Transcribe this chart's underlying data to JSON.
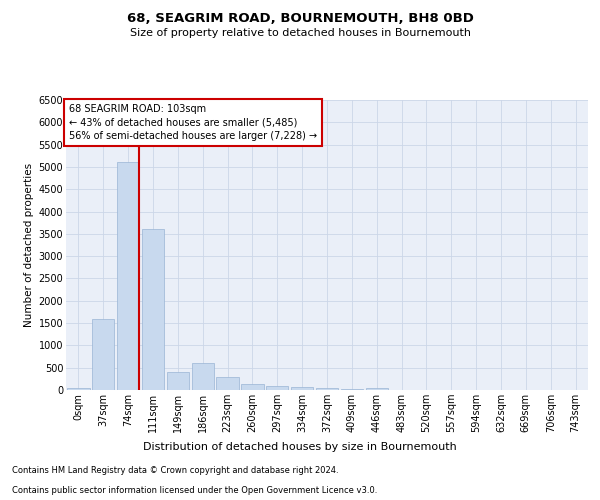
{
  "title": "68, SEAGRIM ROAD, BOURNEMOUTH, BH8 0BD",
  "subtitle": "Size of property relative to detached houses in Bournemouth",
  "xlabel": "Distribution of detached houses by size in Bournemouth",
  "ylabel": "Number of detached properties",
  "footer_line1": "Contains HM Land Registry data © Crown copyright and database right 2024.",
  "footer_line2": "Contains public sector information licensed under the Open Government Licence v3.0.",
  "bin_labels": [
    "0sqm",
    "37sqm",
    "74sqm",
    "111sqm",
    "149sqm",
    "186sqm",
    "223sqm",
    "260sqm",
    "297sqm",
    "334sqm",
    "372sqm",
    "409sqm",
    "446sqm",
    "483sqm",
    "520sqm",
    "557sqm",
    "594sqm",
    "632sqm",
    "669sqm",
    "706sqm",
    "743sqm"
  ],
  "bar_values": [
    50,
    1600,
    5100,
    3600,
    400,
    600,
    300,
    125,
    100,
    60,
    40,
    30,
    50,
    5,
    3,
    2,
    1,
    1,
    0,
    0,
    0
  ],
  "bar_color": "#c8d9ee",
  "bar_edge_color": "#9ab5d5",
  "grid_color": "#ccd6e8",
  "background_color": "#eaeff8",
  "vline_color": "#cc0000",
  "ylim": [
    0,
    6500
  ],
  "yticks": [
    0,
    500,
    1000,
    1500,
    2000,
    2500,
    3000,
    3500,
    4000,
    4500,
    5000,
    5500,
    6000,
    6500
  ],
  "annotation_title": "68 SEAGRIM ROAD: 103sqm",
  "annotation_line1": "← 43% of detached houses are smaller (5,485)",
  "annotation_line2": "56% of semi-detached houses are larger (7,228) →",
  "annotation_box_color": "#ffffff",
  "annotation_border_color": "#cc0000",
  "title_fontsize": 9.5,
  "subtitle_fontsize": 8,
  "annotation_fontsize": 7,
  "ylabel_fontsize": 7.5,
  "xlabel_fontsize": 8,
  "tick_fontsize": 7,
  "footer_fontsize": 6
}
